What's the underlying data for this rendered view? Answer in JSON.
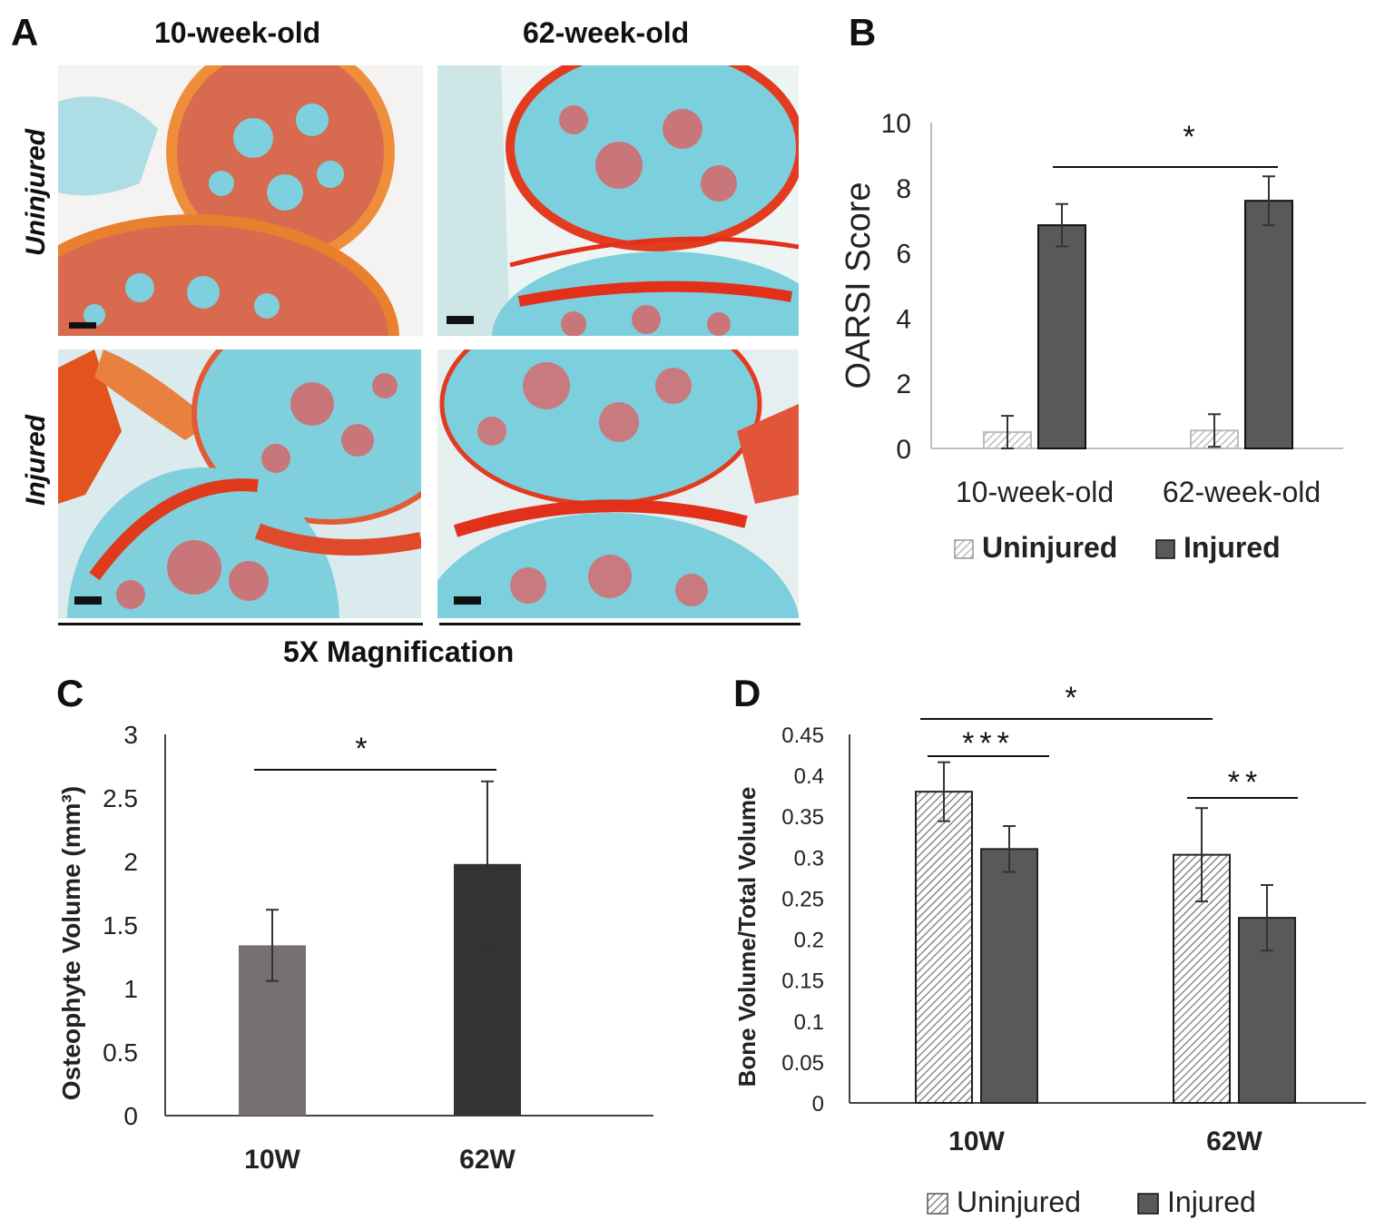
{
  "panel_a": {
    "letter": "A",
    "col_headers": [
      "10-week-old",
      "62-week-old"
    ],
    "row_headers": [
      "Uninjured",
      "Injured"
    ],
    "footer": "5X Magnification",
    "images": [
      "uninjured-10-week",
      "uninjured-62-week",
      "injured-10-week",
      "injured-62-week"
    ],
    "colors": {
      "bone": "#d9624a",
      "cartilage_red": "#e0341c",
      "stroma": "#7ad0de",
      "background": "#f3f3f1"
    }
  },
  "chart_data": [
    {
      "panel": "B",
      "type": "bar",
      "title": "",
      "xlabel": "",
      "ylabel": "OARSI Score",
      "ylim": [
        0,
        10
      ],
      "yticks": [
        "0",
        "2",
        "4",
        "6",
        "8",
        "10"
      ],
      "categories": [
        "10-week-old",
        "62-week-old"
      ],
      "series": [
        {
          "name": "Uninjured",
          "values": [
            0.5,
            0.55
          ],
          "errors": [
            0.5,
            0.5
          ],
          "pattern": "hatch",
          "color": "#bdbdbd"
        },
        {
          "name": "Injured",
          "values": [
            6.85,
            7.6
          ],
          "errors": [
            0.65,
            0.75
          ],
          "pattern": "solid",
          "color": "#595959"
        }
      ],
      "significance": [
        {
          "label": "*",
          "between": [
            "10-week-old Injured",
            "62-week-old Injured"
          ]
        }
      ],
      "legend_position": "bottom"
    },
    {
      "panel": "C",
      "type": "bar",
      "title": "",
      "xlabel": "",
      "ylabel": "Osteophyte Volume (mm³)",
      "ylim": [
        0,
        3
      ],
      "yticks": [
        "0",
        "0.5",
        "1",
        "1.5",
        "2",
        "2.5",
        "3"
      ],
      "categories": [
        "10W",
        "62W"
      ],
      "values": [
        1.34,
        1.98
      ],
      "errors": [
        0.28,
        0.65
      ],
      "colors": [
        "#767171",
        "#333333"
      ],
      "significance": [
        {
          "label": "*",
          "between": [
            "10W",
            "62W"
          ]
        }
      ]
    },
    {
      "panel": "D",
      "type": "bar",
      "title": "",
      "xlabel": "",
      "ylabel": "Bone Volume/Total Volume",
      "ylim": [
        0,
        0.45
      ],
      "yticks": [
        "0",
        "0.05",
        "0.1",
        "0.15",
        "0.2",
        "0.25",
        "0.3",
        "0.35",
        "0.4",
        "0.45"
      ],
      "categories": [
        "10W",
        "62W"
      ],
      "series": [
        {
          "name": "Uninjured",
          "values": [
            0.38,
            0.303
          ],
          "errors": [
            0.036,
            0.057
          ],
          "pattern": "hatch",
          "color": "#bfbfbf"
        },
        {
          "name": "Injured",
          "values": [
            0.31,
            0.226
          ],
          "errors": [
            0.028,
            0.04
          ],
          "pattern": "solid",
          "color": "#595959"
        }
      ],
      "significance": [
        {
          "label": "*",
          "between": [
            "10W Uninjured",
            "62W Uninjured"
          ]
        },
        {
          "label": "***",
          "between": [
            "10W Uninjured",
            "10W Injured"
          ]
        },
        {
          "label": "**",
          "between": [
            "62W Uninjured",
            "62W Injured"
          ]
        }
      ],
      "legend_position": "bottom"
    }
  ]
}
